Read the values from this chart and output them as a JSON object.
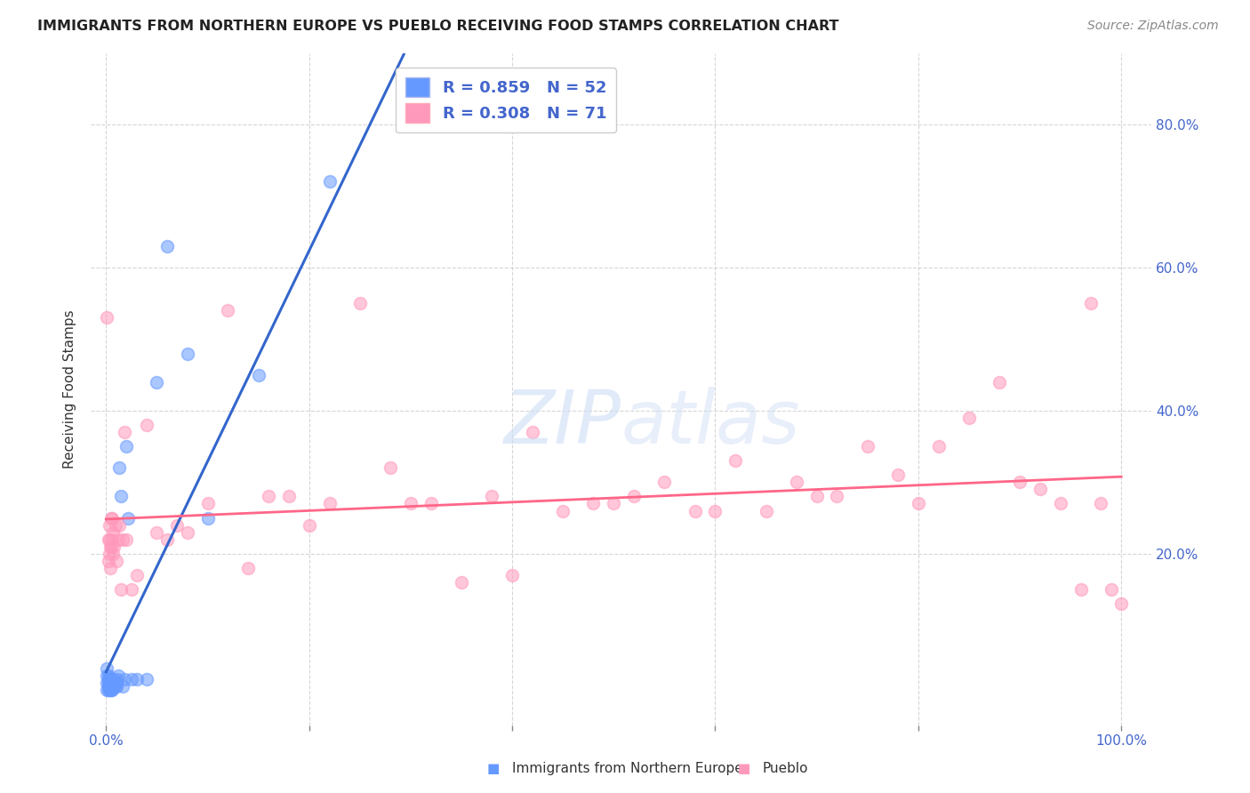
{
  "title": "IMMIGRANTS FROM NORTHERN EUROPE VS PUEBLO RECEIVING FOOD STAMPS CORRELATION CHART",
  "source": "Source: ZipAtlas.com",
  "xlabel_blue": "Immigrants from Northern Europe",
  "xlabel_pink": "Pueblo",
  "ylabel": "Receiving Food Stamps",
  "blue_R": 0.859,
  "blue_N": 52,
  "pink_R": 0.308,
  "pink_N": 71,
  "blue_color": "#6699ff",
  "pink_color": "#ff99bb",
  "blue_line_color": "#3366cc",
  "pink_line_color": "#ff6688",
  "xlim": [
    0.0,
    1.0
  ],
  "ylim": [
    0.0,
    0.9
  ],
  "blue_x": [
    0.001,
    0.001,
    0.001,
    0.001,
    0.002,
    0.002,
    0.002,
    0.002,
    0.002,
    0.003,
    0.003,
    0.003,
    0.003,
    0.003,
    0.004,
    0.004,
    0.004,
    0.004,
    0.005,
    0.005,
    0.005,
    0.005,
    0.006,
    0.006,
    0.006,
    0.007,
    0.007,
    0.008,
    0.008,
    0.008,
    0.009,
    0.009,
    0.01,
    0.01,
    0.011,
    0.012,
    0.013,
    0.015,
    0.016,
    0.018,
    0.02,
    0.022,
    0.025,
    0.03,
    0.04,
    0.05,
    0.06,
    0.08,
    0.1,
    0.15,
    0.22,
    0.32
  ],
  "blue_y": [
    0.01,
    0.02,
    0.03,
    0.04,
    0.01,
    0.015,
    0.02,
    0.025,
    0.03,
    0.01,
    0.015,
    0.02,
    0.02,
    0.025,
    0.01,
    0.015,
    0.02,
    0.025,
    0.01,
    0.015,
    0.02,
    0.025,
    0.01,
    0.015,
    0.02,
    0.015,
    0.02,
    0.015,
    0.02,
    0.025,
    0.015,
    0.02,
    0.015,
    0.02,
    0.025,
    0.03,
    0.32,
    0.28,
    0.015,
    0.025,
    0.35,
    0.25,
    0.025,
    0.025,
    0.025,
    0.44,
    0.63,
    0.48,
    0.25,
    0.45,
    0.72,
    0.83
  ],
  "pink_x": [
    0.001,
    0.002,
    0.002,
    0.003,
    0.003,
    0.004,
    0.005,
    0.005,
    0.006,
    0.007,
    0.007,
    0.008,
    0.009,
    0.01,
    0.012,
    0.013,
    0.015,
    0.016,
    0.018,
    0.02,
    0.025,
    0.03,
    0.04,
    0.05,
    0.06,
    0.07,
    0.08,
    0.1,
    0.12,
    0.14,
    0.16,
    0.18,
    0.2,
    0.22,
    0.25,
    0.28,
    0.3,
    0.32,
    0.35,
    0.38,
    0.4,
    0.42,
    0.45,
    0.48,
    0.5,
    0.52,
    0.55,
    0.58,
    0.6,
    0.62,
    0.65,
    0.68,
    0.7,
    0.72,
    0.75,
    0.78,
    0.8,
    0.82,
    0.85,
    0.88,
    0.9,
    0.92,
    0.94,
    0.96,
    0.97,
    0.98,
    0.99,
    1.0,
    0.003,
    0.004,
    0.006
  ],
  "pink_y": [
    0.53,
    0.19,
    0.22,
    0.2,
    0.22,
    0.18,
    0.21,
    0.25,
    0.22,
    0.2,
    0.23,
    0.21,
    0.24,
    0.19,
    0.22,
    0.24,
    0.15,
    0.22,
    0.37,
    0.22,
    0.15,
    0.17,
    0.38,
    0.23,
    0.22,
    0.24,
    0.23,
    0.27,
    0.54,
    0.18,
    0.28,
    0.28,
    0.24,
    0.27,
    0.55,
    0.32,
    0.27,
    0.27,
    0.16,
    0.28,
    0.17,
    0.37,
    0.26,
    0.27,
    0.27,
    0.28,
    0.3,
    0.26,
    0.26,
    0.33,
    0.26,
    0.3,
    0.28,
    0.28,
    0.35,
    0.31,
    0.27,
    0.35,
    0.39,
    0.44,
    0.3,
    0.29,
    0.27,
    0.15,
    0.55,
    0.27,
    0.15,
    0.13,
    0.24,
    0.21,
    0.25
  ]
}
